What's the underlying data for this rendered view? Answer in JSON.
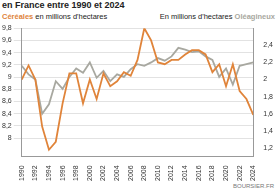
{
  "chart_data": {
    "type": "line",
    "title": "en France entre 1990 et 2024",
    "ylabel": "en millions d'hectares",
    "y2label": "En millions d'hectares",
    "annotations": [
      "BOURSIER.FR"
    ],
    "categories": [
      "1990",
      null,
      "1992",
      null,
      "1994",
      null,
      "1996",
      null,
      "1998",
      null,
      "2000",
      null,
      "2002",
      null,
      "2004",
      null,
      "2006",
      null,
      "2008",
      null,
      "2010",
      null,
      "2012",
      null,
      "2014",
      null,
      "2016",
      null,
      "2018",
      null,
      "2020",
      null,
      "2022",
      null,
      "2024"
    ],
    "series": [
      {
        "name": "Céréales",
        "color": "#e0843a",
        "axis": "y",
        "values": [
          8.96,
          9.19,
          8.96,
          8.19,
          7.81,
          7.94,
          8.57,
          9.06,
          9.06,
          8.57,
          8.96,
          8.64,
          9.06,
          8.85,
          8.93,
          9.08,
          9.02,
          9.28,
          9.8,
          9.6,
          9.24,
          9.21,
          9.28,
          9.28,
          9.37,
          9.44,
          9.44,
          9.37,
          9.08,
          9.21,
          8.85,
          9.21,
          8.77,
          8.64,
          8.38
        ]
      },
      {
        "name": "Oléagineux",
        "color": "#a8a8a0",
        "axis": "y2",
        "values": [
          2.16,
          2.06,
          2.0,
          1.6,
          1.71,
          1.98,
          1.89,
          2.03,
          2.13,
          2.08,
          2.2,
          2.02,
          2.1,
          1.98,
          2.06,
          2.03,
          2.12,
          2.18,
          2.16,
          2.2,
          2.25,
          2.22,
          2.27,
          2.37,
          2.35,
          2.32,
          2.33,
          2.27,
          2.23,
          2.03,
          2.13,
          1.94,
          2.16,
          2.18,
          2.2
        ]
      }
    ],
    "ylim": [
      7.7,
      9.8
    ],
    "yticks": [
      8,
      {
        "value": 8.2,
        "label": "8,2"
      },
      {
        "value": 8.4,
        "label": "8,4"
      },
      {
        "value": 8.6,
        "label": "8,6"
      },
      {
        "value": 8.8,
        "label": "8,8"
      },
      9,
      {
        "value": 9.2,
        "label": "9,2"
      },
      {
        "value": 9.4,
        "label": "9,4"
      },
      {
        "value": 9.6,
        "label": "9,6"
      },
      {
        "value": 9.8,
        "label": "9,8"
      }
    ],
    "y2lim": [
      1.1,
      2.6
    ],
    "y2ticks": [
      {
        "value": 1.2,
        "label": "1,2"
      },
      {
        "value": 1.4,
        "label": "1,4"
      },
      {
        "value": 1.6,
        "label": "1,6"
      },
      {
        "value": 1.8,
        "label": "1,8"
      },
      2,
      {
        "value": 2.2,
        "label": "2,2"
      },
      {
        "value": 2.4,
        "label": "2,4"
      }
    ],
    "grid": true
  }
}
